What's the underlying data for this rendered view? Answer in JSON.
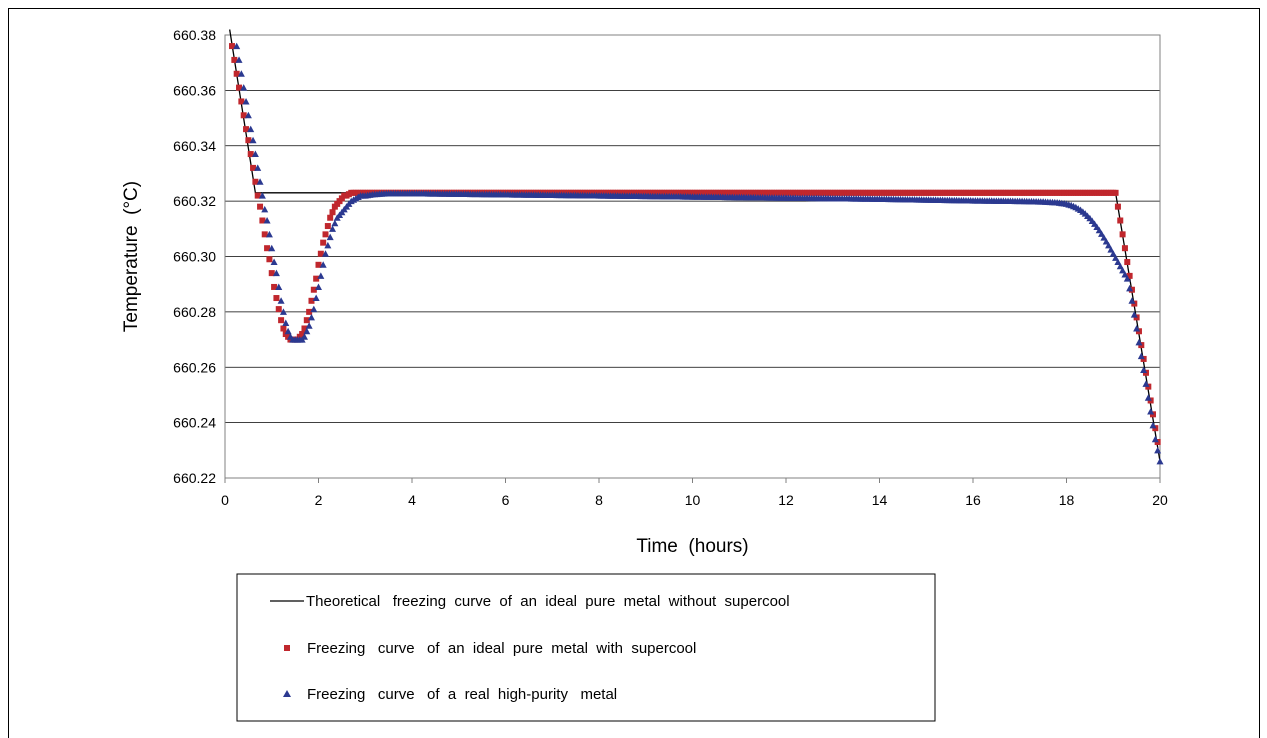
{
  "chart_data": {
    "type": "scatter",
    "xlabel": "Time  (hours)",
    "ylabel": "Temperature  (°C)",
    "xlim": [
      0,
      20
    ],
    "ylim": [
      660.22,
      660.38
    ],
    "xticks": [
      "0",
      "2",
      "4",
      "6",
      "8",
      "10",
      "12",
      "14",
      "16",
      "18",
      "20"
    ],
    "yticks": [
      "660.22",
      "660.24",
      "660.26",
      "660.28",
      "660.30",
      "660.32",
      "660.34",
      "660.36",
      "660.38"
    ],
    "grid": "horizontal",
    "legend_position": "bottom",
    "series": [
      {
        "name": "Theoretical   freezing  curve  of  an  ideal  pure  metal  without  supercool",
        "marker": "line",
        "color": "#000000",
        "points": [
          [
            0.1,
            660.382
          ],
          [
            0.65,
            660.323
          ],
          [
            19.05,
            660.323
          ],
          [
            20.0,
            660.226
          ]
        ]
      },
      {
        "name": "Freezing   curve   of  an  ideal  pure  metal  with  supercool",
        "marker": "square",
        "color": "#c0272d",
        "points": [
          [
            0.15,
            660.376
          ],
          [
            0.2,
            660.371
          ],
          [
            0.25,
            660.366
          ],
          [
            0.3,
            660.361
          ],
          [
            0.35,
            660.356
          ],
          [
            0.4,
            660.351
          ],
          [
            0.45,
            660.346
          ],
          [
            0.5,
            660.342
          ],
          [
            0.55,
            660.337
          ],
          [
            0.6,
            660.332
          ],
          [
            0.65,
            660.327
          ],
          [
            0.7,
            660.322
          ],
          [
            0.75,
            660.318
          ],
          [
            0.8,
            660.313
          ],
          [
            0.85,
            660.308
          ],
          [
            0.9,
            660.303
          ],
          [
            0.95,
            660.299
          ],
          [
            1.0,
            660.294
          ],
          [
            1.05,
            660.289
          ],
          [
            1.1,
            660.285
          ],
          [
            1.15,
            660.281
          ],
          [
            1.2,
            660.277
          ],
          [
            1.25,
            660.274
          ],
          [
            1.3,
            660.272
          ],
          [
            1.35,
            660.271
          ],
          [
            1.4,
            660.27
          ],
          [
            1.45,
            660.27
          ],
          [
            1.5,
            660.27
          ],
          [
            1.55,
            660.27
          ],
          [
            1.6,
            660.271
          ],
          [
            1.65,
            660.272
          ],
          [
            1.7,
            660.274
          ],
          [
            1.75,
            660.277
          ],
          [
            1.8,
            660.28
          ],
          [
            1.85,
            660.284
          ],
          [
            1.9,
            660.288
          ],
          [
            1.95,
            660.292
          ],
          [
            2.0,
            660.297
          ],
          [
            2.05,
            660.301
          ],
          [
            2.1,
            660.305
          ],
          [
            2.15,
            660.308
          ],
          [
            2.2,
            660.311
          ],
          [
            2.25,
            660.314
          ],
          [
            2.3,
            660.316
          ],
          [
            2.35,
            660.318
          ],
          [
            2.4,
            660.319
          ],
          [
            2.45,
            660.32
          ],
          [
            2.5,
            660.321
          ],
          [
            2.55,
            660.322
          ],
          [
            2.6,
            660.322
          ],
          [
            2.65,
            660.3225
          ],
          [
            2.7,
            660.323
          ],
          [
            2.8,
            660.323
          ],
          [
            2.9,
            660.323
          ],
          [
            3.0,
            660.323
          ],
          [
            3.5,
            660.323
          ],
          [
            4.0,
            660.323
          ],
          [
            5.0,
            660.323
          ],
          [
            6.0,
            660.323
          ],
          [
            7.0,
            660.323
          ],
          [
            8.0,
            660.323
          ],
          [
            9.0,
            660.323
          ],
          [
            10.0,
            660.323
          ],
          [
            11.0,
            660.323
          ],
          [
            12.0,
            660.323
          ],
          [
            13.0,
            660.323
          ],
          [
            14.0,
            660.323
          ],
          [
            15.0,
            660.323
          ],
          [
            16.0,
            660.323
          ],
          [
            17.0,
            660.323
          ],
          [
            18.0,
            660.323
          ],
          [
            18.5,
            660.323
          ],
          [
            19.0,
            660.323
          ],
          [
            19.05,
            660.323
          ],
          [
            19.1,
            660.318
          ],
          [
            19.15,
            660.313
          ],
          [
            19.2,
            660.308
          ],
          [
            19.25,
            660.303
          ],
          [
            19.3,
            660.298
          ],
          [
            19.35,
            660.293
          ],
          [
            19.4,
            660.288
          ],
          [
            19.45,
            660.283
          ],
          [
            19.5,
            660.278
          ],
          [
            19.55,
            660.273
          ],
          [
            19.6,
            660.268
          ],
          [
            19.65,
            660.263
          ],
          [
            19.7,
            660.258
          ],
          [
            19.75,
            660.253
          ],
          [
            19.8,
            660.248
          ],
          [
            19.85,
            660.243
          ],
          [
            19.9,
            660.238
          ],
          [
            19.95,
            660.233
          ]
        ]
      },
      {
        "name": "Freezing   curve   of  a  real  high-purity   metal",
        "marker": "triangle",
        "color": "#2b3990",
        "points": [
          [
            0.25,
            660.376
          ],
          [
            0.3,
            660.371
          ],
          [
            0.35,
            660.366
          ],
          [
            0.4,
            660.361
          ],
          [
            0.45,
            660.356
          ],
          [
            0.5,
            660.351
          ],
          [
            0.55,
            660.346
          ],
          [
            0.6,
            660.342
          ],
          [
            0.65,
            660.337
          ],
          [
            0.7,
            660.332
          ],
          [
            0.75,
            660.327
          ],
          [
            0.8,
            660.322
          ],
          [
            0.85,
            660.317
          ],
          [
            0.9,
            660.313
          ],
          [
            0.95,
            660.308
          ],
          [
            1.0,
            660.303
          ],
          [
            1.05,
            660.298
          ],
          [
            1.1,
            660.294
          ],
          [
            1.15,
            660.289
          ],
          [
            1.2,
            660.284
          ],
          [
            1.25,
            660.28
          ],
          [
            1.3,
            660.276
          ],
          [
            1.35,
            660.273
          ],
          [
            1.4,
            660.271
          ],
          [
            1.45,
            660.27
          ],
          [
            1.5,
            660.27
          ],
          [
            1.55,
            660.27
          ],
          [
            1.6,
            660.27
          ],
          [
            1.65,
            660.27
          ],
          [
            1.7,
            660.271
          ],
          [
            1.75,
            660.273
          ],
          [
            1.8,
            660.275
          ],
          [
            1.85,
            660.278
          ],
          [
            1.9,
            660.281
          ],
          [
            1.95,
            660.285
          ],
          [
            2.0,
            660.289
          ],
          [
            2.05,
            660.293
          ],
          [
            2.1,
            660.297
          ],
          [
            2.15,
            660.301
          ],
          [
            2.2,
            660.304
          ],
          [
            2.25,
            660.307
          ],
          [
            2.3,
            660.31
          ],
          [
            2.35,
            660.312
          ],
          [
            2.4,
            660.314
          ],
          [
            2.45,
            660.315
          ],
          [
            2.5,
            660.316
          ],
          [
            2.55,
            660.317
          ],
          [
            2.6,
            660.318
          ],
          [
            2.65,
            660.319
          ],
          [
            2.7,
            660.32
          ],
          [
            2.8,
            660.321
          ],
          [
            2.9,
            660.322
          ],
          [
            3.0,
            660.322
          ],
          [
            3.2,
            660.3225
          ],
          [
            3.5,
            660.3228
          ],
          [
            4.0,
            660.3228
          ],
          [
            5.0,
            660.3226
          ],
          [
            6.0,
            660.3224
          ],
          [
            7.0,
            660.3222
          ],
          [
            8.0,
            660.322
          ],
          [
            9.0,
            660.3218
          ],
          [
            10.0,
            660.3216
          ],
          [
            11.0,
            660.3214
          ],
          [
            12.0,
            660.3212
          ],
          [
            13.0,
            660.321
          ],
          [
            14.0,
            660.3208
          ],
          [
            15.0,
            660.3205
          ],
          [
            16.0,
            660.3202
          ],
          [
            17.0,
            660.32
          ],
          [
            17.5,
            660.3198
          ],
          [
            17.8,
            660.3195
          ],
          [
            18.0,
            660.319
          ],
          [
            18.1,
            660.3185
          ],
          [
            18.2,
            660.3178
          ],
          [
            18.3,
            660.3168
          ],
          [
            18.4,
            660.3155
          ],
          [
            18.5,
            660.3138
          ],
          [
            18.6,
            660.3118
          ],
          [
            18.7,
            660.3095
          ],
          [
            18.8,
            660.3068
          ],
          [
            18.9,
            660.304
          ],
          [
            19.0,
            660.301
          ],
          [
            19.1,
            660.298
          ],
          [
            19.2,
            660.295
          ],
          [
            19.3,
            660.292
          ],
          [
            19.35,
            660.2885
          ],
          [
            19.4,
            660.284
          ],
          [
            19.45,
            660.279
          ],
          [
            19.5,
            660.274
          ],
          [
            19.55,
            660.269
          ],
          [
            19.6,
            660.264
          ],
          [
            19.65,
            660.259
          ],
          [
            19.7,
            660.254
          ],
          [
            19.75,
            660.249
          ],
          [
            19.8,
            660.244
          ],
          [
            19.85,
            660.239
          ],
          [
            19.9,
            660.234
          ],
          [
            19.95,
            660.23
          ],
          [
            20.0,
            660.226
          ]
        ]
      }
    ]
  }
}
